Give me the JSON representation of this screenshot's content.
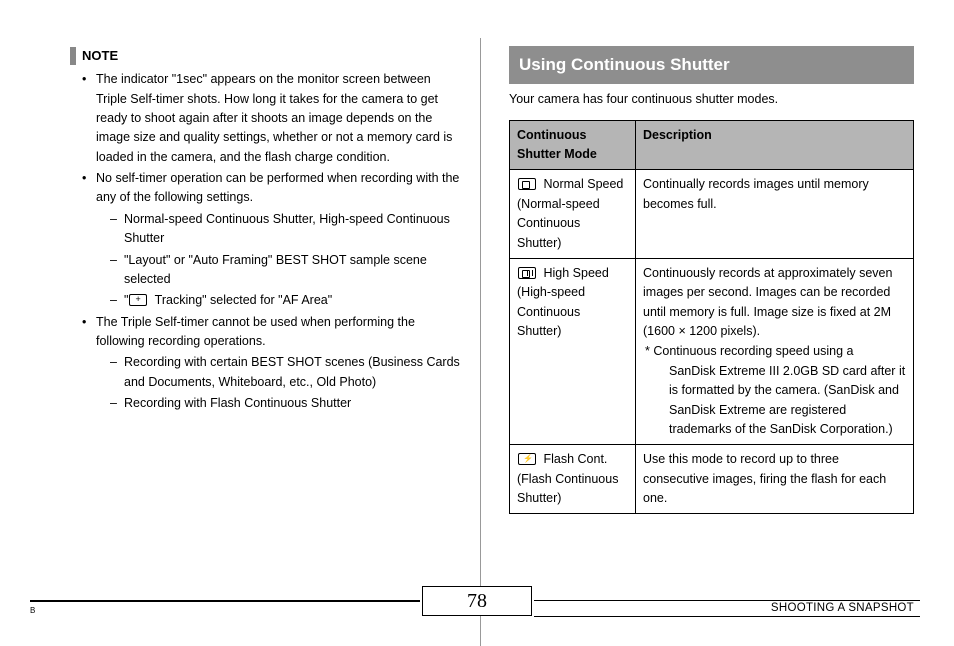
{
  "left": {
    "noteLabel": "NOTE",
    "bullets": [
      {
        "text": "The indicator \"1sec\" appears on the monitor screen between Triple Self-timer shots. How long it takes for the camera to get ready to shoot again after it shoots an image depends on the image size and quality settings, whether or not a memory card is loaded in the camera, and the flash charge condition."
      },
      {
        "text": "No self-timer operation can be performed when recording with the any of the following settings.",
        "dashes": [
          {
            "text": "Normal-speed Continuous Shutter, High-speed Continuous Shutter"
          },
          {
            "text": "\"Layout\" or \"Auto Framing\" BEST SHOT sample scene selected"
          },
          {
            "pre": "\"",
            "iconClass": "inline-icon tracking",
            "post": " Tracking\" selected for \"AF Area\""
          }
        ]
      },
      {
        "text": "The Triple Self-timer cannot be used when performing the following recording operations.",
        "dashes": [
          {
            "text": "Recording with certain BEST SHOT scenes (Business Cards and Documents, Whiteboard, etc., Old Photo)"
          },
          {
            "text": "Recording with Flash Continuous Shutter"
          }
        ]
      }
    ]
  },
  "right": {
    "sectionTitle": "Using Continuous Shutter",
    "intro": "Your camera has four continuous shutter modes.",
    "headers": {
      "mode": "Continuous Shutter Mode",
      "desc": "Description"
    },
    "rows": [
      {
        "iconClass": "inline-icon",
        "modeLine1": " Normal Speed",
        "modeRest": "(Normal-speed Continuous Shutter)",
        "desc": "Continually records images until memory becomes full."
      },
      {
        "iconClass": "inline-icon speed",
        "modeLine1": " High Speed",
        "modeRest": "(High-speed Continuous Shutter)",
        "desc": "Continuously records at approximately seven images per second. Images can be recorded until memory is full. Image size is fixed at 2M (1600 × 1200 pixels).",
        "asterisk": "*  Continuous recording speed using a",
        "asteriskSub1": "SanDisk Extreme III 2.0GB SD card after it is formatted by the camera. (SanDisk and SanDisk Extreme are registered trademarks of the SanDisk Corporation.)"
      },
      {
        "iconClass": "inline-icon flash",
        "modeLine1": " Flash Cont.",
        "modeRest": "(Flash Continuous Shutter)",
        "desc": "Use this mode to record up to three consecutive images, firing the flash for each one."
      }
    ]
  },
  "footer": {
    "pageNum": "78",
    "b": "B",
    "section": "SHOOTING A SNAPSHOT"
  }
}
